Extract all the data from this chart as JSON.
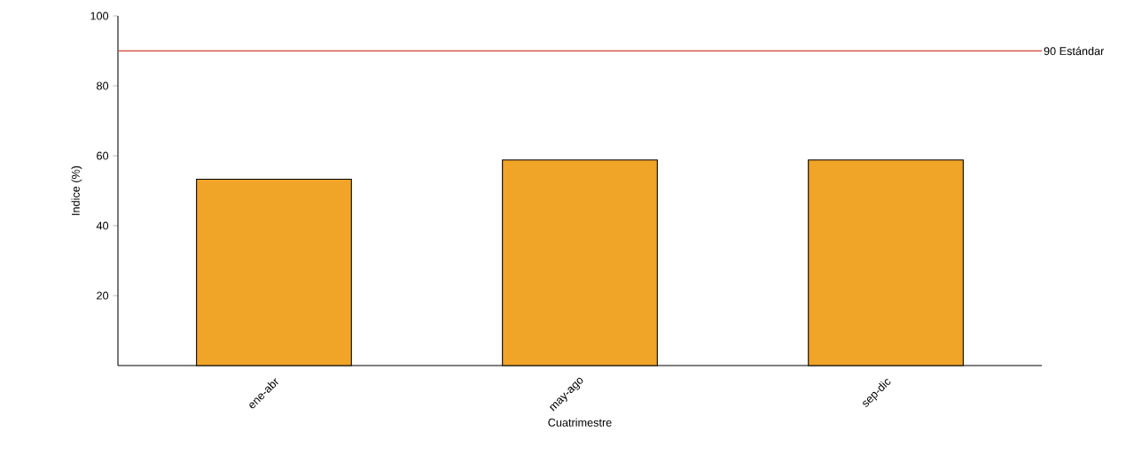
{
  "chart_data": {
    "type": "bar",
    "xlabel": "Cuatrimestre",
    "ylabel": "Indice (%)",
    "categories": [
      "ene-abr",
      "may-ago",
      "sep-dic"
    ],
    "values": [
      53.3,
      58.8,
      58.8
    ],
    "color": "#f0a428",
    "ylim": [
      0,
      100
    ],
    "yticks": [
      20,
      40,
      60,
      80,
      100
    ],
    "ref_lines": [
      {
        "axis": "y",
        "value": 90,
        "label": "90 Estándar",
        "color": "#d9534f"
      }
    ]
  }
}
